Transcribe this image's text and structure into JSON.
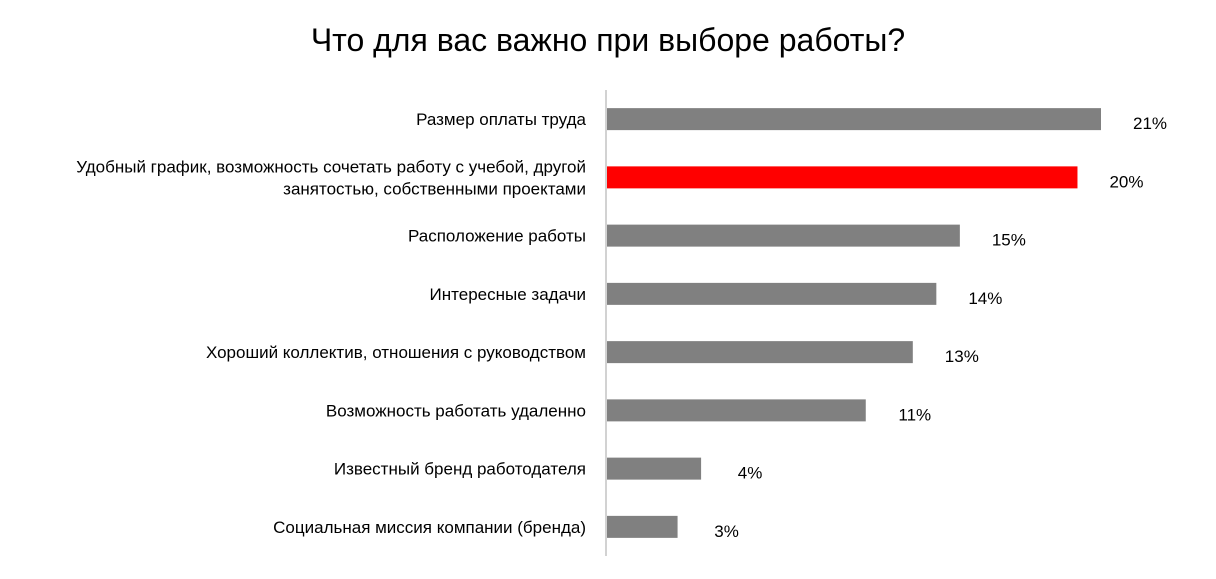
{
  "chart_data": {
    "type": "bar",
    "orientation": "horizontal",
    "title": "Что для вас важно при выборе работы?",
    "categories": [
      "Размер оплаты труда",
      "Удобный график, возможность сочетать работу с учебой, другой занятостью, собственными проектами",
      "Расположение работы",
      "Интересные задачи",
      "Хороший коллектив, отношения с руководством",
      "Возможность работать удаленно",
      "Известный бренд работодателя",
      "Социальная миссия компании (бренда)"
    ],
    "category_lines": [
      [
        "Размер оплаты труда"
      ],
      [
        "Удобный график, возможность сочетать работу с учебой, другой",
        "занятостью, собственными проектами"
      ],
      [
        "Расположение работы"
      ],
      [
        "Интересные задачи"
      ],
      [
        "Хороший коллектив, отношения с руководством"
      ],
      [
        "Возможность работать удаленно"
      ],
      [
        "Известный бренд работодателя"
      ],
      [
        "Социальная миссия компании (бренда)"
      ]
    ],
    "values": [
      21,
      20,
      15,
      14,
      13,
      11,
      4,
      3
    ],
    "value_labels": [
      "21%",
      "20%",
      "15%",
      "14%",
      "13%",
      "11%",
      "4%",
      "3%"
    ],
    "bar_colors": [
      "#808080",
      "#ff0000",
      "#808080",
      "#808080",
      "#808080",
      "#808080",
      "#808080",
      "#808080"
    ],
    "highlight_index": 1,
    "xlabel": "",
    "ylabel": "",
    "grid": false,
    "legend": "none"
  }
}
